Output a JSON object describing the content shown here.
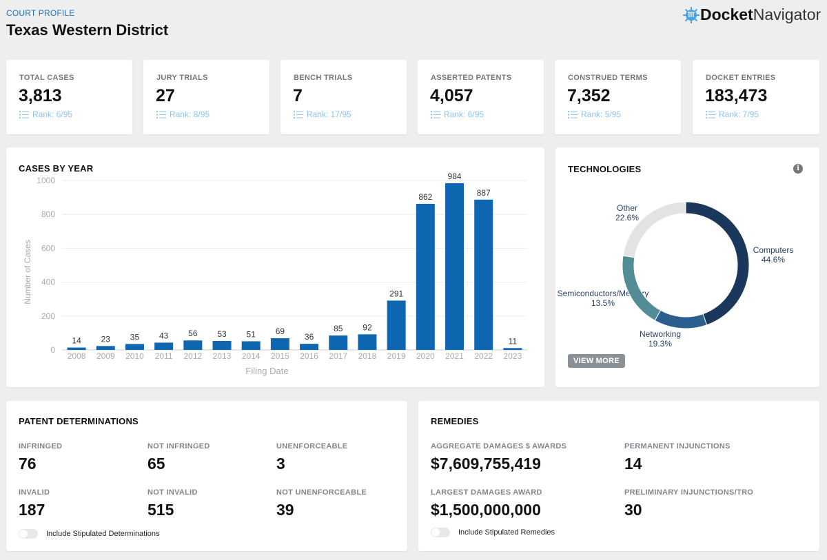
{
  "header": {
    "kicker": "COURT PROFILE",
    "title": "Texas Western District",
    "logo_bold": "Docket",
    "logo_light": "Navigator"
  },
  "stats": [
    {
      "label": "TOTAL CASES",
      "value": "3,813",
      "rank": "Rank: 6/95"
    },
    {
      "label": "JURY TRIALS",
      "value": "27",
      "rank": "Rank: 8/95"
    },
    {
      "label": "BENCH TRIALS",
      "value": "7",
      "rank": "Rank: 17/95"
    },
    {
      "label": "ASSERTED PATENTS",
      "value": "4,057",
      "rank": "Rank: 6/95"
    },
    {
      "label": "CONSTRUED TERMS",
      "value": "7,352",
      "rank": "Rank: 5/95"
    },
    {
      "label": "DOCKET ENTRIES",
      "value": "183,473",
      "rank": "Rank: 7/95"
    }
  ],
  "chart_data": [
    {
      "type": "bar",
      "title": "CASES BY YEAR",
      "xlabel": "Filing Date",
      "ylabel": "Number of Cases",
      "ylim": [
        0,
        1000
      ],
      "yticks": [
        "0",
        "200",
        "400",
        "600",
        "800",
        "1000"
      ],
      "categories": [
        "2008",
        "2009",
        "2010",
        "2011",
        "2012",
        "2013",
        "2014",
        "2015",
        "2016",
        "2017",
        "2018",
        "2019",
        "2020",
        "2021",
        "2022",
        "2023"
      ],
      "values": [
        14,
        23,
        35,
        43,
        56,
        53,
        51,
        69,
        36,
        85,
        92,
        291,
        862,
        984,
        887,
        11
      ],
      "color": "#0f67b1",
      "grid": true
    },
    {
      "type": "pie",
      "title": "TECHNOLOGIES",
      "donut": true,
      "labels": [
        "Computers",
        "Semiconductors/Memory",
        "Networking",
        "Other"
      ],
      "values": [
        44.6,
        13.5,
        19.3,
        22.6
      ],
      "value_labels": [
        "44.6%",
        "13.5%",
        "19.3%",
        "22.6%"
      ],
      "colors": [
        "#1c375c",
        "#2c5e8f",
        "#548c96",
        "#e3e3e3"
      ]
    }
  ],
  "technologies": {
    "view_more": "VIEW MORE",
    "info": "i"
  },
  "determinations": {
    "title": "PATENT DETERMINATIONS",
    "items": [
      {
        "label": "INFRINGED",
        "value": "76"
      },
      {
        "label": "NOT INFRINGED",
        "value": "65"
      },
      {
        "label": "UNENFORCEABLE",
        "value": "3"
      },
      {
        "label": "INVALID",
        "value": "187"
      },
      {
        "label": "NOT INVALID",
        "value": "515"
      },
      {
        "label": "NOT UNENFORCEABLE",
        "value": "39"
      }
    ],
    "toggle": "Include Stipulated Determinations"
  },
  "remedies": {
    "title": "REMEDIES",
    "items": [
      {
        "label": "AGGREGATE DAMAGES $ AWARDS",
        "value": "$7,609,755,419"
      },
      {
        "label": "PERMANENT INJUNCTIONS",
        "value": "14"
      },
      {
        "label": "LARGEST DAMAGES AWARD",
        "value": "$1,500,000,000"
      },
      {
        "label": "PRELIMINARY INJUNCTIONS/TRO",
        "value": "30"
      }
    ],
    "toggle": "Include Stipulated Remedies"
  }
}
